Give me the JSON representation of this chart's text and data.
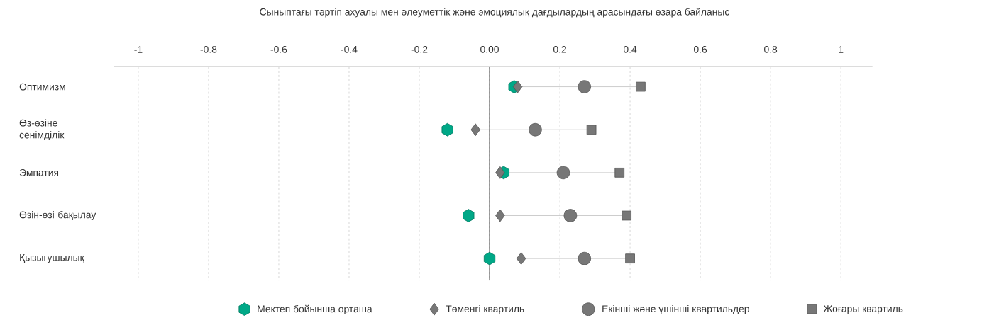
{
  "chart_data": {
    "type": "scatter",
    "orientation": "horizontal",
    "title": "Сыныптағы тәртіп ахуалы мен әлеуметтік және эмоциялық дағдылардың арасындағы өзара байланыс",
    "categories": [
      "Оптимизм",
      "Өз-өзіне сенімділік",
      "Эмпатия",
      "Өзін-өзі бақылау",
      "Қызығушылық"
    ],
    "xlim": [
      -1.07,
      1.09
    ],
    "xticks": [
      -1,
      -0.8,
      -0.6,
      -0.4,
      -0.2,
      {
        "value": 0,
        "label": "0.00"
      },
      0.2,
      0.4,
      0.6,
      0.8,
      1
    ],
    "grid": "x",
    "legend": "bottom",
    "ref_lines": [
      {
        "axis": "x",
        "value": 0,
        "color": "#000000"
      }
    ],
    "series": [
      {
        "name": "Мектеп бойынша орташа",
        "color": "#00a887",
        "values": [
          0.07,
          -0.12,
          0.04,
          -0.06,
          0.0
        ]
      },
      {
        "name": "Төменгі квартиль",
        "color": "#777777",
        "marker": "diamond",
        "values": [
          0.08,
          -0.04,
          0.03,
          0.03,
          0.09
        ]
      },
      {
        "name": "Екінші және үшінші квартильдер",
        "color": "#777777",
        "marker": "circle",
        "values": [
          0.27,
          0.13,
          0.21,
          0.23,
          0.27
        ]
      },
      {
        "name": "Жоғары квартиль",
        "color": "#777777",
        "marker": "square",
        "values": [
          0.43,
          0.29,
          0.37,
          0.39,
          0.4
        ]
      }
    ]
  }
}
